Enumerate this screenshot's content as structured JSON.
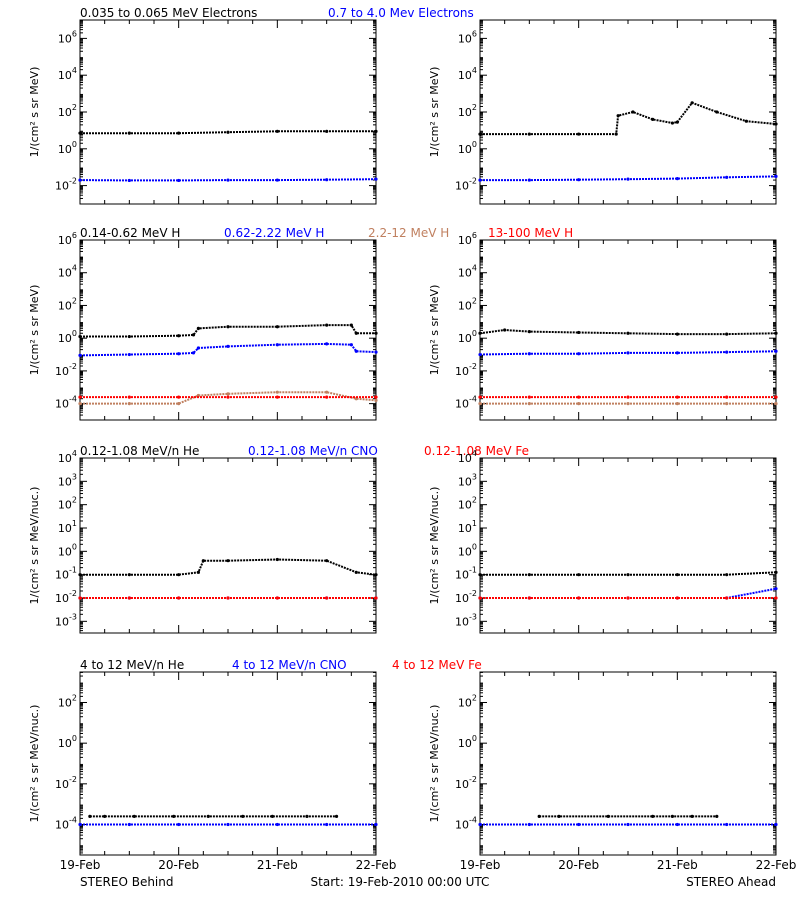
{
  "colors": {
    "black": "#000000",
    "blue": "#0000ff",
    "tan": "#c08060",
    "red": "#ff0000"
  },
  "footer": {
    "left": "STEREO Behind",
    "center": "Start: 19-Feb-2010 00:00 UTC",
    "right": "STEREO Ahead",
    "x_ticks": [
      "19-Feb",
      "20-Feb",
      "21-Feb",
      "22-Feb"
    ]
  },
  "chart_data": [
    {
      "type": "scatter",
      "title_segments": [
        {
          "text": "0.035 to 0.065 MeV Electrons",
          "color": "#000000"
        },
        {
          "text": "0.7 to 4.0 Mev Electrons",
          "color": "#0000ff"
        }
      ],
      "ylabel": "1/(cm² s sr MeV)",
      "ylim_log10": [
        -3,
        7
      ],
      "y_tick_exponents": [
        -2,
        0,
        2,
        4,
        6
      ],
      "xlim_days": [
        0,
        3
      ],
      "x_tick_labels": [
        "19-Feb",
        "20-Feb",
        "21-Feb",
        "22-Feb"
      ],
      "scale": "log",
      "panels": [
        {
          "name": "STEREO Behind",
          "series": [
            {
              "color": "#000000",
              "x": [
                0,
                0.5,
                1,
                1.5,
                2,
                2.5,
                3
              ],
              "y_log10": [
                0.85,
                0.85,
                0.85,
                0.9,
                0.95,
                0.95,
                0.95
              ]
            },
            {
              "color": "#0000ff",
              "x": [
                0,
                0.5,
                1,
                1.5,
                2,
                2.5,
                3
              ],
              "y_log10": [
                -1.7,
                -1.72,
                -1.72,
                -1.7,
                -1.7,
                -1.68,
                -1.65
              ]
            }
          ]
        },
        {
          "name": "STEREO Ahead",
          "series": [
            {
              "color": "#000000",
              "x": [
                0,
                0.5,
                1,
                1.38,
                1.4,
                1.55,
                1.75,
                1.95,
                2.0,
                2.15,
                2.4,
                2.7,
                3
              ],
              "y_log10": [
                0.8,
                0.8,
                0.8,
                0.8,
                1.8,
                2.0,
                1.6,
                1.4,
                1.45,
                2.5,
                2.0,
                1.5,
                1.35
              ]
            },
            {
              "color": "#0000ff",
              "x": [
                0,
                0.5,
                1,
                1.5,
                2,
                2.5,
                3
              ],
              "y_log10": [
                -1.7,
                -1.7,
                -1.68,
                -1.65,
                -1.62,
                -1.55,
                -1.5
              ]
            }
          ]
        }
      ]
    },
    {
      "type": "scatter",
      "title_segments": [
        {
          "text": "0.14-0.62 MeV H",
          "color": "#000000"
        },
        {
          "text": "0.62-2.22 MeV H",
          "color": "#0000ff"
        },
        {
          "text": "2.2-12 MeV H",
          "color": "#c08060"
        },
        {
          "text": "13-100 MeV H",
          "color": "#ff0000"
        }
      ],
      "ylabel": "1/(cm² s sr MeV)",
      "ylim_log10": [
        -5,
        6
      ],
      "y_tick_exponents": [
        -4,
        -2,
        0,
        2,
        4,
        6
      ],
      "xlim_days": [
        0,
        3
      ],
      "x_tick_labels": [
        "19-Feb",
        "20-Feb",
        "21-Feb",
        "22-Feb"
      ],
      "scale": "log",
      "panels": [
        {
          "name": "STEREO Behind",
          "series": [
            {
              "color": "#000000",
              "x": [
                0,
                0.5,
                1,
                1.15,
                1.2,
                1.5,
                2,
                2.5,
                2.75,
                2.8,
                3
              ],
              "y_log10": [
                0.1,
                0.1,
                0.15,
                0.2,
                0.6,
                0.7,
                0.7,
                0.8,
                0.8,
                0.3,
                0.3
              ]
            },
            {
              "color": "#0000ff",
              "x": [
                0,
                0.5,
                1,
                1.15,
                1.2,
                1.5,
                2,
                2.5,
                2.75,
                2.8,
                3
              ],
              "y_log10": [
                -1.05,
                -1.0,
                -0.95,
                -0.9,
                -0.6,
                -0.5,
                -0.4,
                -0.35,
                -0.4,
                -0.8,
                -0.85
              ]
            },
            {
              "color": "#c08060",
              "x": [
                0,
                0.5,
                1,
                1.2,
                1.5,
                2,
                2.5,
                2.8,
                3
              ],
              "y_log10": [
                -4.0,
                -4.0,
                -4.0,
                -3.5,
                -3.4,
                -3.3,
                -3.3,
                -3.7,
                -3.8
              ]
            },
            {
              "color": "#ff0000",
              "x": [
                0,
                0.5,
                1,
                1.5,
                2,
                2.5,
                3
              ],
              "y_log10": [
                -3.6,
                -3.6,
                -3.6,
                -3.6,
                -3.6,
                -3.6,
                -3.6
              ]
            }
          ]
        },
        {
          "name": "STEREO Ahead",
          "series": [
            {
              "color": "#000000",
              "x": [
                0,
                0.25,
                0.5,
                1,
                1.5,
                2,
                2.5,
                3
              ],
              "y_log10": [
                0.3,
                0.5,
                0.4,
                0.35,
                0.3,
                0.25,
                0.25,
                0.3
              ]
            },
            {
              "color": "#0000ff",
              "x": [
                0,
                0.5,
                1,
                1.5,
                2,
                2.5,
                3
              ],
              "y_log10": [
                -1.0,
                -0.95,
                -0.95,
                -0.9,
                -0.9,
                -0.85,
                -0.8
              ]
            },
            {
              "color": "#c08060",
              "x": [
                0,
                0.5,
                1,
                1.5,
                2,
                2.5,
                3
              ],
              "y_log10": [
                -4.0,
                -4.0,
                -4.0,
                -4.0,
                -4.0,
                -4.0,
                -4.0
              ]
            },
            {
              "color": "#ff0000",
              "x": [
                0,
                0.5,
                1,
                1.5,
                2,
                2.5,
                3
              ],
              "y_log10": [
                -3.6,
                -3.6,
                -3.6,
                -3.6,
                -3.6,
                -3.6,
                -3.6
              ]
            }
          ]
        }
      ]
    },
    {
      "type": "scatter",
      "title_segments": [
        {
          "text": "0.12-1.08 MeV/n He",
          "color": "#000000"
        },
        {
          "text": "0.12-1.08 MeV/n CNO",
          "color": "#0000ff"
        },
        {
          "text": "0.12-1.08 MeV Fe",
          "color": "#ff0000"
        }
      ],
      "ylabel": "1/(cm² s sr MeV/nuc.)",
      "ylim_log10": [
        -3.5,
        4
      ],
      "y_tick_exponents": [
        -3,
        -2,
        -1,
        0,
        1,
        2,
        3,
        4
      ],
      "xlim_days": [
        0,
        3
      ],
      "x_tick_labels": [
        "19-Feb",
        "20-Feb",
        "21-Feb",
        "22-Feb"
      ],
      "scale": "log",
      "panels": [
        {
          "name": "STEREO Behind",
          "series": [
            {
              "color": "#000000",
              "x": [
                0,
                0.5,
                1,
                1.2,
                1.25,
                1.5,
                2,
                2.5,
                2.8,
                3
              ],
              "y_log10": [
                -1.0,
                -1.0,
                -1.0,
                -0.9,
                -0.4,
                -0.4,
                -0.35,
                -0.4,
                -0.9,
                -1.0
              ]
            },
            {
              "color": "#0000ff",
              "x": [
                0,
                0.5,
                1,
                1.5,
                2,
                2.5,
                3
              ],
              "y_log10": [
                -2.0,
                -2.0,
                -2.0,
                -2.0,
                -2.0,
                -2.0,
                -2.0
              ]
            },
            {
              "color": "#ff0000",
              "x": [
                0,
                0.5,
                1,
                1.5,
                2,
                2.5,
                3
              ],
              "y_log10": [
                -2.0,
                -2.0,
                -2.0,
                -2.0,
                -2.0,
                -2.0,
                -2.0
              ]
            }
          ]
        },
        {
          "name": "STEREO Ahead",
          "series": [
            {
              "color": "#000000",
              "x": [
                0,
                0.5,
                1,
                1.5,
                2,
                2.5,
                3
              ],
              "y_log10": [
                -1.0,
                -1.0,
                -1.0,
                -1.0,
                -1.0,
                -1.0,
                -0.9
              ]
            },
            {
              "color": "#0000ff",
              "x": [
                0,
                0.5,
                1,
                1.5,
                2,
                2.5,
                3
              ],
              "y_log10": [
                -2.0,
                -2.0,
                -2.0,
                -2.0,
                -2.0,
                -2.0,
                -1.6
              ]
            },
            {
              "color": "#ff0000",
              "x": [
                0,
                0.5,
                1,
                1.5,
                2,
                2.5,
                3
              ],
              "y_log10": [
                -2.0,
                -2.0,
                -2.0,
                -2.0,
                -2.0,
                -2.0,
                -2.0
              ]
            }
          ]
        }
      ]
    },
    {
      "type": "scatter",
      "title_segments": [
        {
          "text": "4 to 12 MeV/n He",
          "color": "#000000"
        },
        {
          "text": "4 to 12 MeV/n CNO",
          "color": "#0000ff"
        },
        {
          "text": "4 to 12 MeV Fe",
          "color": "#ff0000"
        }
      ],
      "ylabel": "1/(cm² s sr MeV/nuc.)",
      "ylim_log10": [
        -5.5,
        3.5
      ],
      "y_tick_exponents": [
        -4,
        -2,
        0,
        2
      ],
      "xlim_days": [
        0,
        3
      ],
      "x_tick_labels": [
        "19-Feb",
        "20-Feb",
        "21-Feb",
        "22-Feb"
      ],
      "scale": "log",
      "panels": [
        {
          "name": "STEREO Behind",
          "series": [
            {
              "color": "#000000",
              "x": [
                0.1,
                0.25,
                0.55,
                0.95,
                1.3,
                1.65,
                1.95,
                2.3,
                2.6
              ],
              "y_log10": [
                -3.6,
                -3.6,
                -3.6,
                -3.6,
                -3.6,
                -3.6,
                -3.6,
                -3.6,
                -3.6
              ]
            },
            {
              "color": "#0000ff",
              "x": [
                0,
                0.5,
                1,
                1.5,
                2,
                2.5,
                3
              ],
              "y_log10": [
                -4.0,
                -4.0,
                -4.0,
                -4.0,
                -4.0,
                -4.0,
                -4.0
              ]
            }
          ]
        },
        {
          "name": "STEREO Ahead",
          "series": [
            {
              "color": "#000000",
              "x": [
                0.6,
                0.8,
                1.3,
                1.75,
                1.95,
                2.15,
                2.4
              ],
              "y_log10": [
                -3.6,
                -3.6,
                -3.6,
                -3.6,
                -3.6,
                -3.6,
                -3.6
              ]
            },
            {
              "color": "#0000ff",
              "x": [
                0,
                0.5,
                1,
                1.5,
                2,
                2.5,
                3
              ],
              "y_log10": [
                -4.0,
                -4.0,
                -4.0,
                -4.0,
                -4.0,
                -4.0,
                -4.0
              ]
            }
          ]
        }
      ]
    }
  ]
}
